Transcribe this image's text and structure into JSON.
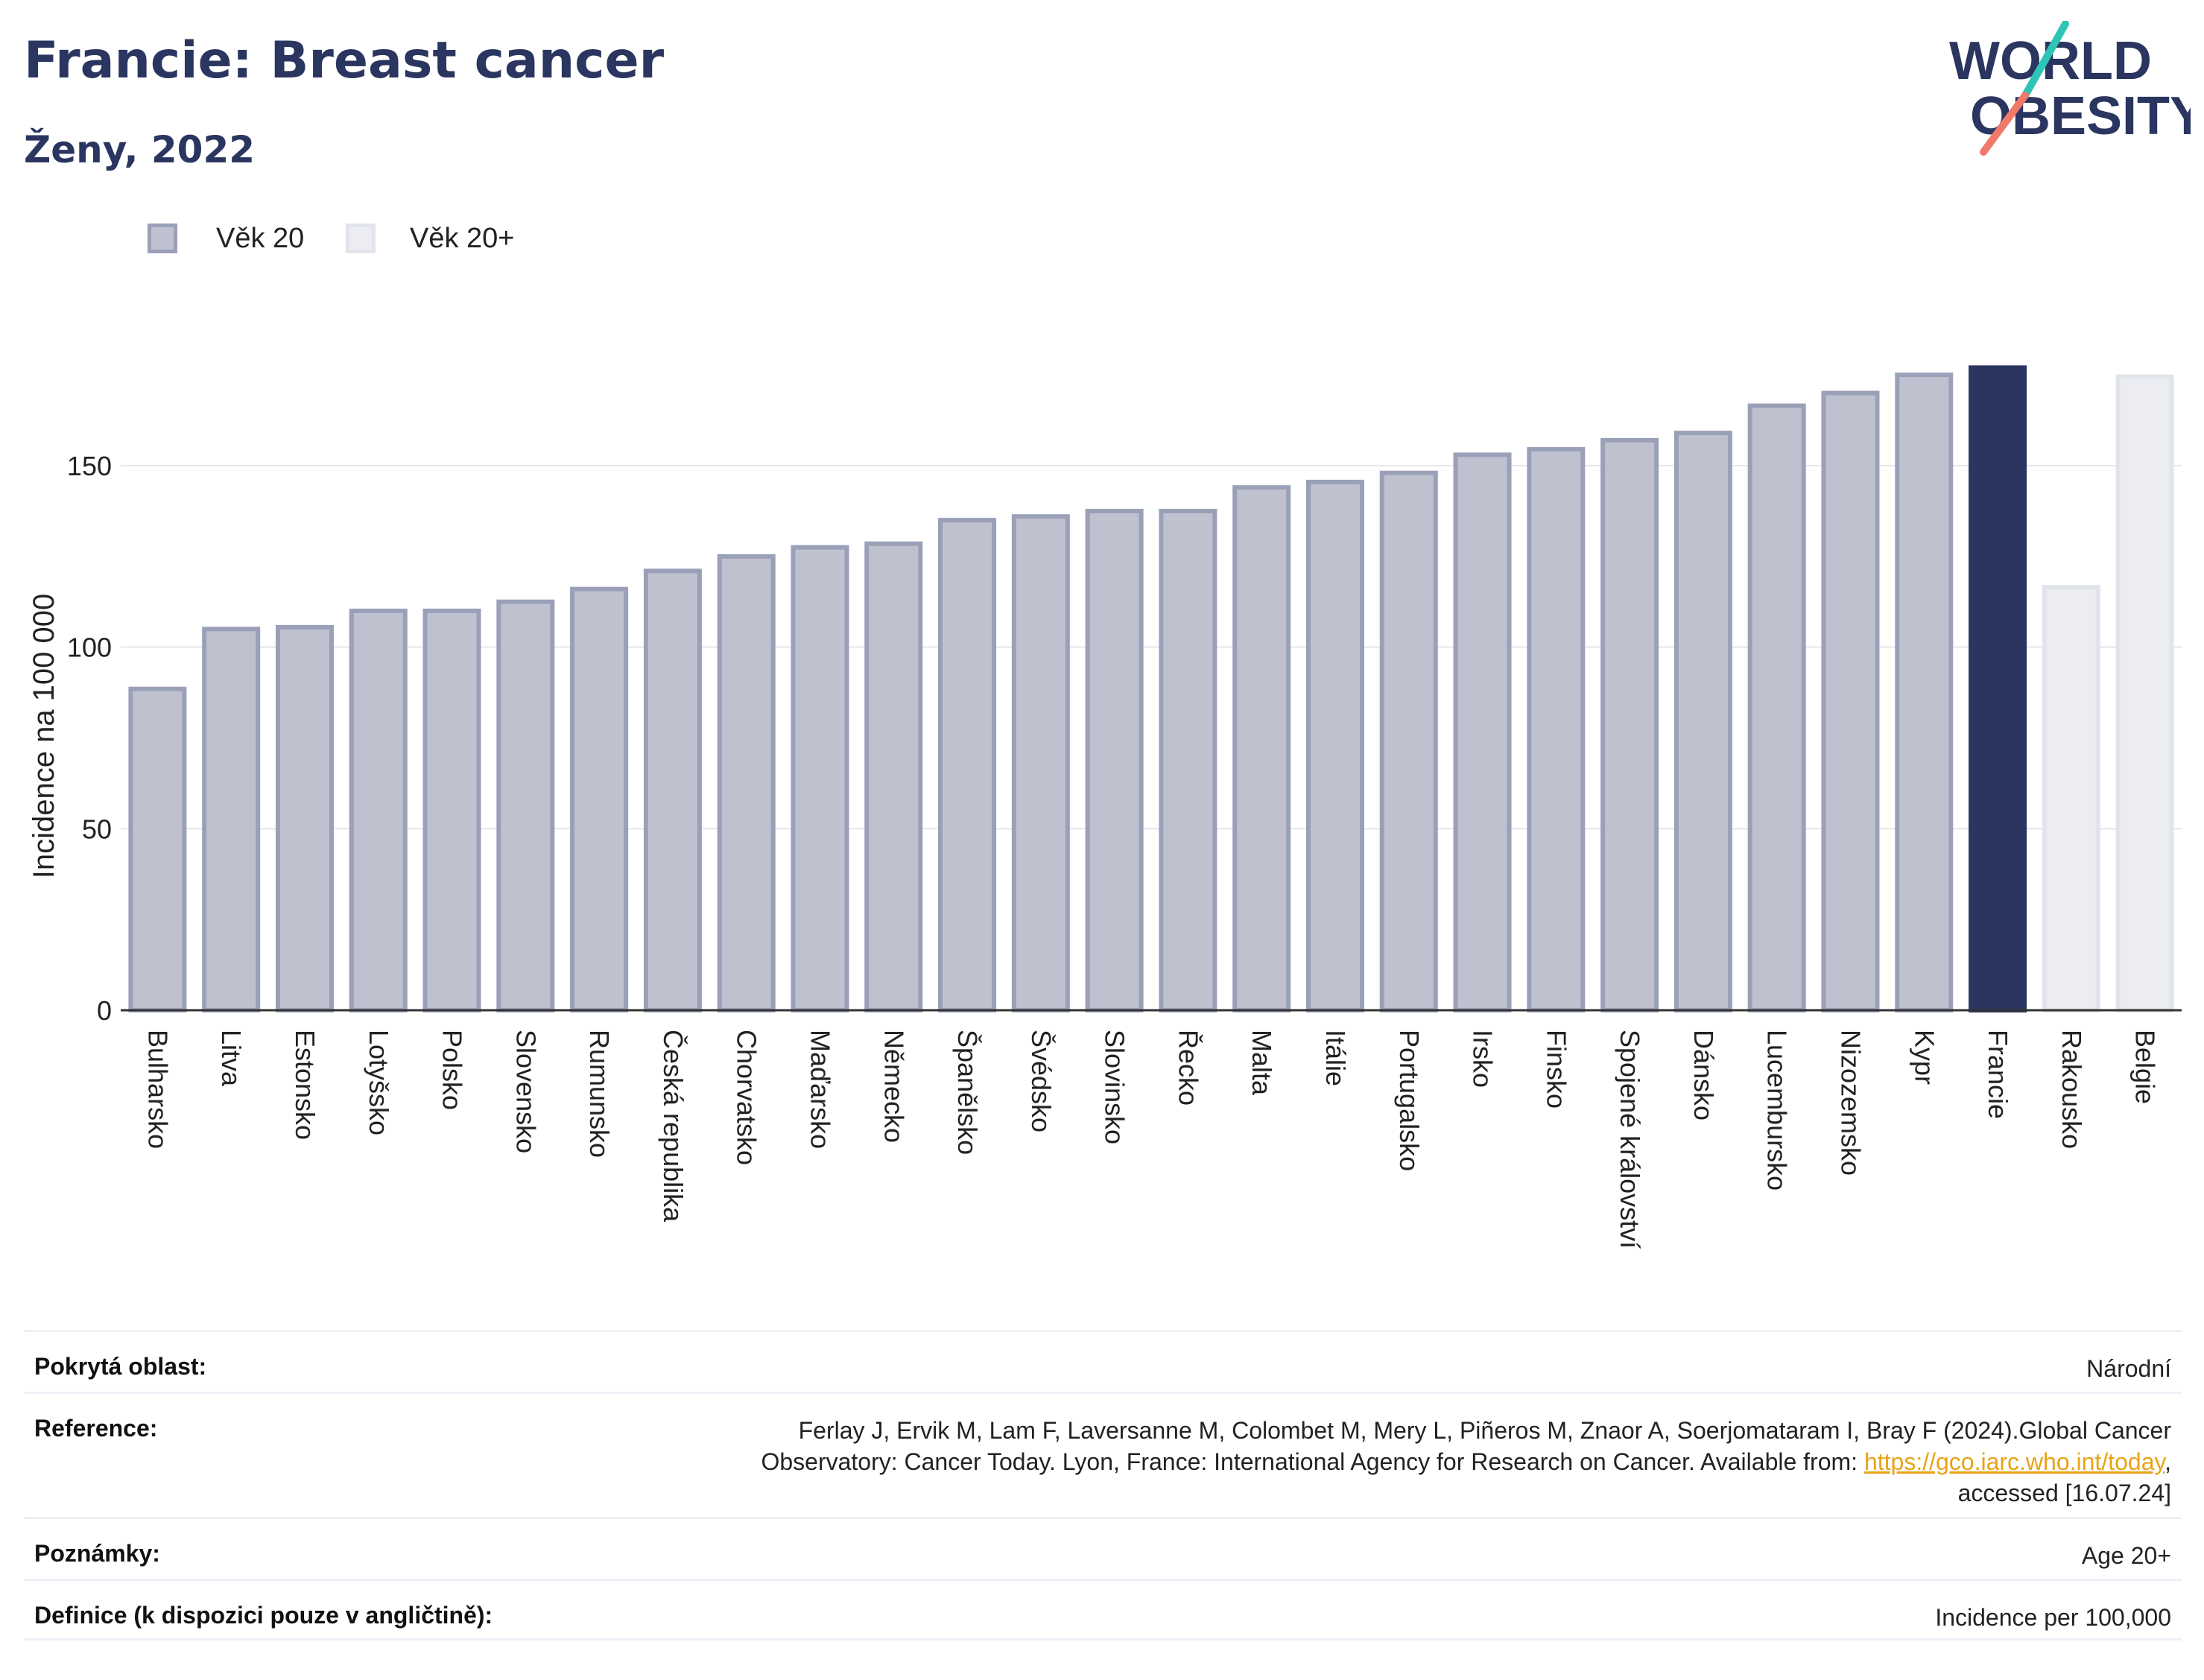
{
  "header": {
    "title": "Francie: Breast cancer",
    "subtitle": "Ženy, 2022"
  },
  "logo": {
    "line1": "WORLD",
    "line2": "OBESITY"
  },
  "legend": [
    {
      "label": "Věk 20",
      "color": "#bfc2ce",
      "border": "#9aa0b8"
    },
    {
      "label": "Věk 20+",
      "color": "#ecedf2",
      "border": "#e2e4eb"
    }
  ],
  "colors": {
    "bar_fill": "#bfc2ce",
    "bar_border": "#9aa0b8",
    "highlight": "#2a3560",
    "light_fill": "#ecedf2",
    "light_border": "#e2e4eb",
    "grid": "#e6e7ec",
    "accent_teal": "#2ec4b6",
    "accent_coral": "#f07a6a"
  },
  "chart_data": {
    "type": "bar",
    "ylabel": "Incidence na 100 000",
    "xlabel": "",
    "ylim": [
      0,
      180
    ],
    "yticks": [
      0,
      50,
      100,
      150
    ],
    "grid": true,
    "legend_placement": "top-left",
    "categories": [
      "Bulharsko",
      "Litva",
      "Estonsko",
      "Lotyšsko",
      "Polsko",
      "Slovensko",
      "Rumunsko",
      "Česká republika",
      "Chorvatsko",
      "Maďarsko",
      "Německo",
      "Španělsko",
      "Švédsko",
      "Slovinsko",
      "Řecko",
      "Malta",
      "Itálie",
      "Portugalsko",
      "Irsko",
      "Finsko",
      "Spojené království",
      "Dánsko",
      "Lucembursko",
      "Nizozemsko",
      "Kypr",
      "Francie",
      "Rakousko",
      "Belgie"
    ],
    "values": [
      88.5,
      105,
      105.5,
      110,
      110,
      112.5,
      116,
      121,
      125,
      127.5,
      128.5,
      135,
      136,
      137.5,
      137.5,
      144,
      145.5,
      148,
      153,
      154.5,
      157,
      159,
      166.5,
      170,
      175,
      177,
      116.5,
      174.5
    ],
    "bar_styles": [
      "base",
      "base",
      "base",
      "base",
      "base",
      "base",
      "base",
      "base",
      "base",
      "base",
      "base",
      "base",
      "base",
      "base",
      "base",
      "base",
      "base",
      "base",
      "base",
      "base",
      "base",
      "base",
      "base",
      "base",
      "base",
      "highlight",
      "light",
      "light"
    ]
  },
  "meta": {
    "coverage_label": "Pokrytá oblast:",
    "coverage_value": "Národní",
    "reference_label": "Reference:",
    "reference_line1": "Ferlay J, Ervik M, Lam F, Laversanne M, Colombet M, Mery L, Piñeros M, Znaor A, Soerjomataram I, Bray F (2024).Global Cancer",
    "reference_line2_pre": "Observatory: Cancer Today. Lyon, France: International Agency for Research on Cancer. Available from: ",
    "reference_link": "https://gco.iarc.who.int/today",
    "reference_line2_post": ",",
    "reference_line3": "accessed [16.07.24]",
    "notes_label": "Poznámky:",
    "notes_value": "Age 20+",
    "definition_label": "Definice (k dispozici pouze v angličtině):",
    "definition_value": "Incidence per 100,000"
  }
}
